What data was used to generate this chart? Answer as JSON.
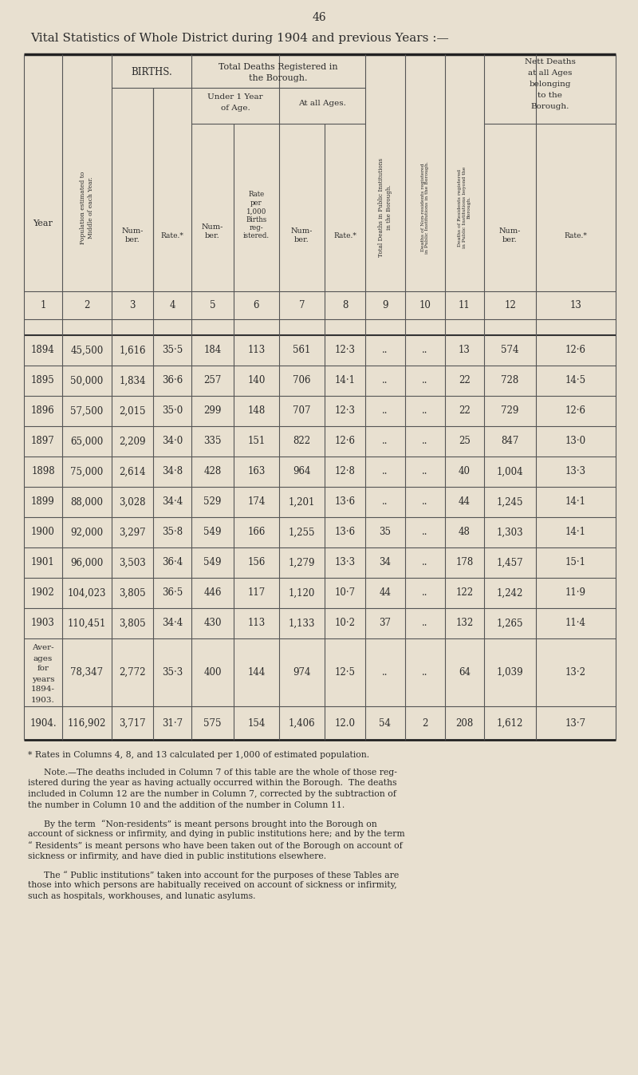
{
  "page_number": "46",
  "title": "Vital Statistics of Whole District during 1904 and previous Years :—",
  "background_color": "#e8e0d0",
  "col_numbers": [
    "1",
    "2",
    "3",
    "4",
    "5",
    "6",
    "7",
    "8",
    "9",
    "10",
    "11",
    "12",
    "13"
  ],
  "year_label": "Year",
  "rows": [
    [
      "1894",
      "45,500",
      "1,616",
      "35·5",
      "184",
      "113",
      "561",
      "12·3",
      "..",
      "..",
      "13",
      "574",
      "12·6"
    ],
    [
      "1895",
      "50,000",
      "1,834",
      "36·6",
      "257",
      "140",
      "706",
      "14·1",
      "..",
      "..",
      "22",
      "728",
      "14·5"
    ],
    [
      "1896",
      "57,500",
      "2,015",
      "35·0",
      "299",
      "148",
      "707",
      "12·3",
      "..",
      "..",
      "22",
      "729",
      "12·6"
    ],
    [
      "1897",
      "65,000",
      "2,209",
      "34·0",
      "335",
      "151",
      "822",
      "12·6",
      "..",
      "..",
      "25",
      "847",
      "13·0"
    ],
    [
      "1898",
      "75,000",
      "2,614",
      "34·8",
      "428",
      "163",
      "964",
      "12·8",
      "..",
      "..",
      "40",
      "1,004",
      "13·3"
    ],
    [
      "1899",
      "88,000",
      "3,028",
      "34·4",
      "529",
      "174",
      "1,201",
      "13·6",
      "..",
      "..",
      "44",
      "1,245",
      "14·1"
    ],
    [
      "1900",
      "92,000",
      "3,297",
      "35·8",
      "549",
      "166",
      "1,255",
      "13·6",
      "35",
      "..",
      "48",
      "1,303",
      "14·1"
    ],
    [
      "1901",
      "96,000",
      "3,503",
      "36·4",
      "549",
      "156",
      "1,279",
      "13·3",
      "34",
      "..",
      "178",
      "1,457",
      "15·1"
    ],
    [
      "1902",
      "104,023",
      "3,805",
      "36·5",
      "446",
      "117",
      "1,120",
      "10·7",
      "44",
      "..",
      "122",
      "1,242",
      "11·9"
    ],
    [
      "1903",
      "110,451",
      "3,805",
      "34·4",
      "430",
      "113",
      "1,133",
      "10·2",
      "37",
      "..",
      "132",
      "1,265",
      "11·4"
    ]
  ],
  "avg_label": [
    "Aver-",
    "ages",
    "for",
    "years",
    "1894-",
    "1903."
  ],
  "avg_row": [
    "78,347",
    "2,772",
    "35·3",
    "400",
    "144",
    "974",
    "12·5",
    "..",
    "..",
    "64",
    "1,039",
    "13·2"
  ],
  "final_year": "1904.",
  "final_row": [
    "116,902",
    "3,717",
    "31·7",
    "575",
    "154",
    "1,406",
    "12.0",
    "54",
    "2",
    "208",
    "1,612",
    "13·7"
  ],
  "footnote1": "* Rates in Columns 4, 8, and 13 calculated per 1,000 of estimated population.",
  "fn2_lines": [
    "Note.—The deaths included in Column 7 of this table are the whole of those reg-",
    "istered during the year as having actually occurred within the Borough.  The deaths",
    "included in Column 12 are the number in Column 7, corrected by the subtraction of",
    "the number in Column 10 and the addition of the number in Column 11."
  ],
  "fn3_lines": [
    "By the term  “Non-residents” is meant persons brought into the Borough on",
    "account of sickness or infirmity, and dying in public institutions here; and by the term",
    "“ Residents” is meant persons who have been taken out of the Borough on account of",
    "sickness or infirmity, and have died in public institutions elsewhere."
  ],
  "fn4_lines": [
    "The “ Public institutions” taken into account for the purposes of these Tables are",
    "those into which persons are habitually received on account of sickness or infirmity,",
    "such as hospitals, workhouses, and lunatic asylums."
  ]
}
